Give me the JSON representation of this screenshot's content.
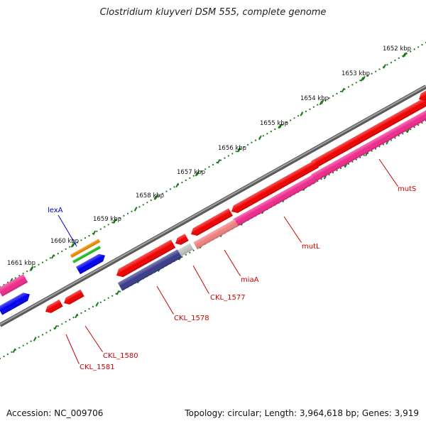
{
  "title": "Clostridium kluyveri DSM 555, complete genome",
  "footer": {
    "accession": "Accession: NC_009706",
    "summary": "Topology: circular; Length: 3,964,618 bp; Genes: 3,919"
  },
  "ticks": [
    {
      "label": "1652 kbp"
    },
    {
      "label": "1653 kbp"
    },
    {
      "label": "1654 kbp"
    },
    {
      "label": "1655 kbp"
    },
    {
      "label": "1656 kbp"
    },
    {
      "label": "1657 kbp"
    },
    {
      "label": "1658 kbp"
    },
    {
      "label": "1659 kbp"
    },
    {
      "label": "1660 kbp"
    },
    {
      "label": "1661 kbp"
    }
  ],
  "gene_labels": [
    {
      "label": "mutS",
      "color": "#cc0000"
    },
    {
      "label": "mutL",
      "color": "#cc0000"
    },
    {
      "label": "miaA",
      "color": "#cc0000"
    },
    {
      "label": "CKL_1577",
      "color": "#cc0000"
    },
    {
      "label": "CKL_1578",
      "color": "#cc0000"
    },
    {
      "label": "CKL_1580",
      "color": "#cc0000"
    },
    {
      "label": "CKL_1581",
      "color": "#cc0000"
    },
    {
      "label": "lexA",
      "color": "#0000cc"
    }
  ],
  "colors": {
    "backbone": "#7a7a7a",
    "tick": "#1a7a1a",
    "cds_red": "#ee0000",
    "cds_pink": "#ee2a8c",
    "cds_blue": "#0000ee",
    "cds_navy": "#3a3a8a",
    "cds_salmon": "#ee8080",
    "cds_gray": "#c0c0c0",
    "cds_orange": "#ee8800",
    "cds_green": "#22bb22"
  }
}
